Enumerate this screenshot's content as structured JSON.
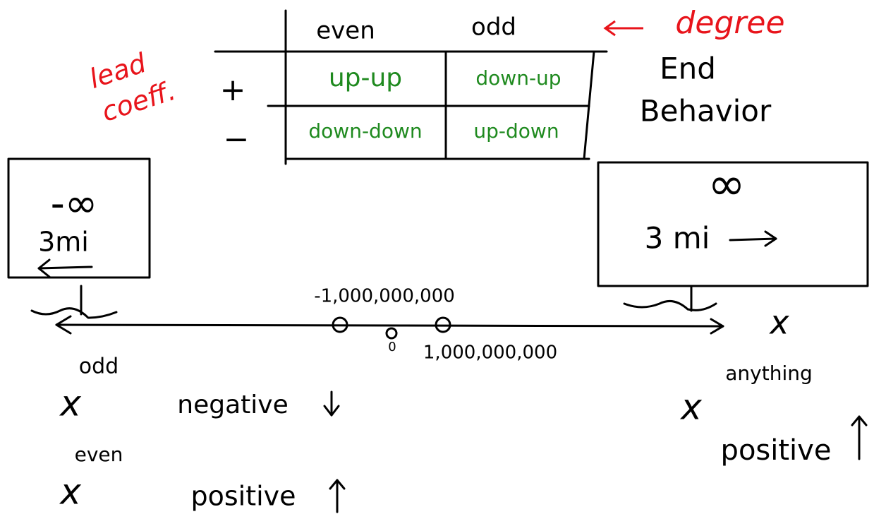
{
  "table": {
    "headers": [
      "even",
      "odd"
    ],
    "header_note": "degree",
    "row_label": [
      "lead",
      "coeff."
    ],
    "rows": [
      [
        "+",
        "up-up",
        "down-up"
      ],
      [
        "−",
        "down-down",
        "up-down"
      ]
    ]
  },
  "side_note": [
    "End",
    "Behavior"
  ],
  "left_box": {
    "label": "-∞",
    "distance": "3mi"
  },
  "right_box": {
    "label": "∞",
    "distance": "3 mi"
  },
  "number_line": {
    "left_marker": "-1,000,000,000",
    "center": "0",
    "right_marker": "1,000,000,000",
    "axis": "x"
  },
  "powers": [
    {
      "base": "x",
      "exponent": "odd",
      "sign": "negative"
    },
    {
      "base": "x",
      "exponent": "even",
      "sign": "positive"
    },
    {
      "base": "x",
      "exponent": "anything",
      "sign": "positive"
    }
  ]
}
